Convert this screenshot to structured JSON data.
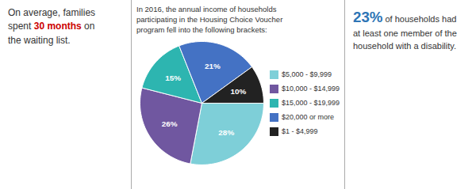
{
  "chart_data": {
    "type": "pie",
    "title": "In 2016, the annual income of households\nparticipating in the Housing Choice Voucher\nprogram fell into the following brackets:",
    "categories": [
      "$5,000 - $9,999",
      "$10,000 - $14,999",
      "$15,000 - $19,999",
      "$20,000 or more",
      "$1 - $4,999"
    ],
    "values": [
      28,
      26,
      15,
      21,
      10
    ],
    "value_labels": [
      "28%",
      "26%",
      "15%",
      "21%",
      "10%"
    ],
    "colors": [
      "#7ecfd8",
      "#7057a0",
      "#2db5b0",
      "#4472c4",
      "#222222"
    ],
    "data_labels": true,
    "legend": "right",
    "annotations": [
      {
        "lines": [
          [
            {
              "text": "On average, families"
            }
          ],
          [
            {
              "text": "spent "
            },
            {
              "text": "30 months",
              "color": "#cc0000"
            },
            {
              "text": " on"
            }
          ],
          [
            {
              "text": "the waiting list."
            }
          ]
        ]
      },
      {
        "lines": [
          [
            {
              "text": "23%",
              "color": "#2e75b6"
            },
            {
              "text": " of households had"
            }
          ],
          [
            {
              "text": "at least one member of the"
            }
          ],
          [
            {
              "text": "household with a disability."
            }
          ]
        ]
      }
    ]
  }
}
